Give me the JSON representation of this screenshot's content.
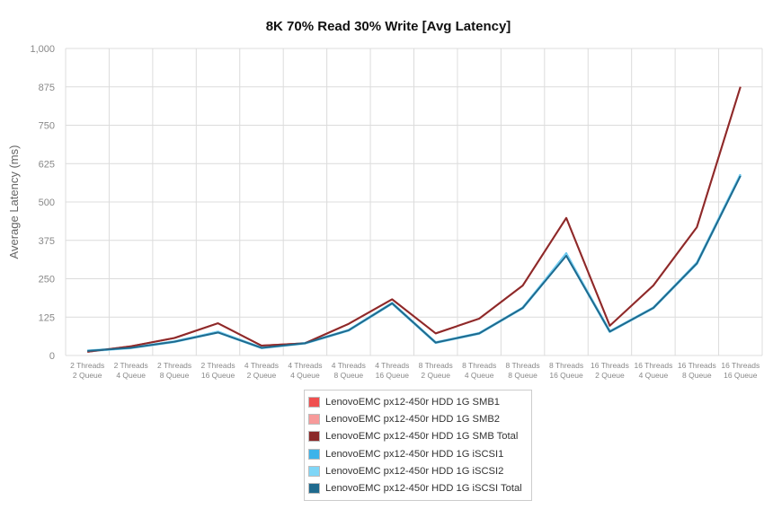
{
  "chart_data": {
    "type": "line",
    "title": "8K 70% Read 30% Write [Avg Latency]",
    "xlabel": "",
    "ylabel": "Average Latency (ms)",
    "ylim": [
      0,
      1000
    ],
    "yticks": [
      "0",
      "125",
      "250",
      "375",
      "500",
      "625",
      "750",
      "875",
      "1,000"
    ],
    "grid": true,
    "legend_position": "bottom",
    "categories": [
      [
        "2 Threads",
        "2 Queue"
      ],
      [
        "2 Threads",
        "4 Queue"
      ],
      [
        "2 Threads",
        "8 Queue"
      ],
      [
        "2 Threads",
        "16 Queue"
      ],
      [
        "4 Threads",
        "2 Queue"
      ],
      [
        "4 Threads",
        "4 Queue"
      ],
      [
        "4 Threads",
        "8 Queue"
      ],
      [
        "4 Threads",
        "16 Queue"
      ],
      [
        "8 Threads",
        "2 Queue"
      ],
      [
        "8 Threads",
        "4 Queue"
      ],
      [
        "8 Threads",
        "8 Queue"
      ],
      [
        "8 Threads",
        "16 Queue"
      ],
      [
        "16 Threads",
        "2 Queue"
      ],
      [
        "16 Threads",
        "4 Queue"
      ],
      [
        "16 Threads",
        "8 Queue"
      ],
      [
        "16 Threads",
        "16 Queue"
      ]
    ],
    "series": [
      {
        "name": "LenovoEMC px12-450r HDD 1G SMB1",
        "color": "#ef4f4f",
        "values": [
          12,
          30,
          57,
          105,
          32,
          40,
          103,
          183,
          72,
          120,
          228,
          448,
          97,
          228,
          418,
          875
        ]
      },
      {
        "name": "LenovoEMC px12-450r HDD 1G SMB2",
        "color": "#f79a9a",
        "values": [
          12,
          30,
          57,
          105,
          32,
          40,
          103,
          183,
          72,
          120,
          228,
          448,
          97,
          228,
          418,
          875
        ]
      },
      {
        "name": "LenovoEMC px12-450r HDD 1G SMB Total",
        "color": "#8b2a2a",
        "values": [
          12,
          30,
          57,
          105,
          32,
          40,
          103,
          183,
          72,
          120,
          228,
          448,
          97,
          228,
          418,
          875
        ]
      },
      {
        "name": "LenovoEMC px12-450r HDD 1G iSCSI1",
        "color": "#3db3ea",
        "values": [
          15,
          25,
          45,
          78,
          26,
          40,
          83,
          172,
          42,
          73,
          156,
          333,
          78,
          156,
          303,
          590
        ]
      },
      {
        "name": "LenovoEMC px12-450r HDD 1G iSCSI2",
        "color": "#7fd6f7",
        "values": [
          15,
          25,
          45,
          76,
          25,
          40,
          82,
          170,
          42,
          72,
          155,
          328,
          78,
          155,
          300,
          588
        ]
      },
      {
        "name": "LenovoEMC px12-450r HDD 1G iSCSI Total",
        "color": "#1f6a8e",
        "values": [
          15,
          25,
          45,
          75,
          25,
          40,
          82,
          170,
          42,
          72,
          155,
          325,
          78,
          155,
          300,
          585
        ]
      }
    ]
  }
}
